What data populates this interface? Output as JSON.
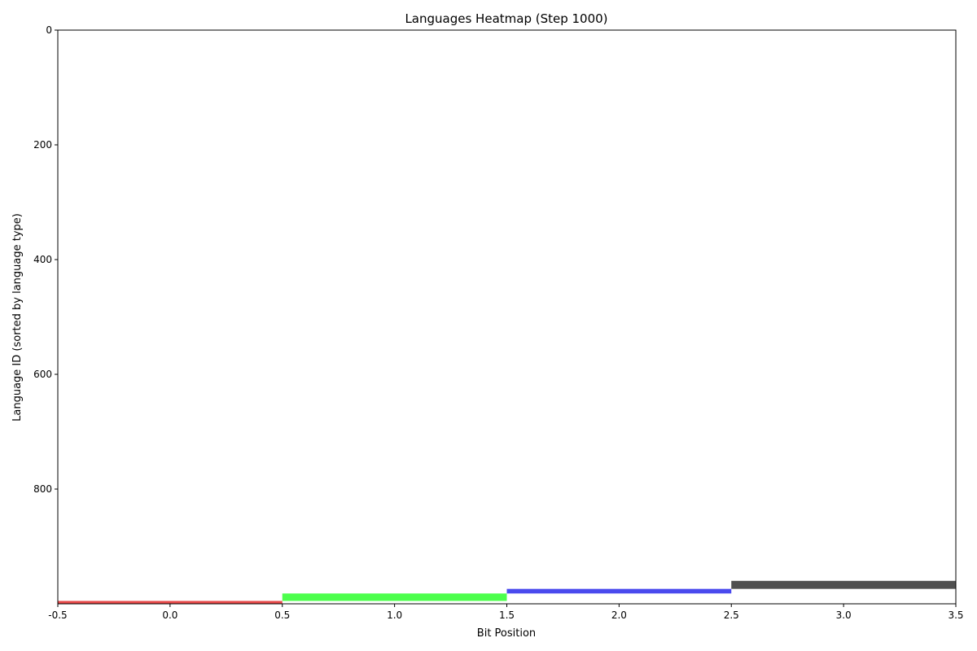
{
  "chart_data": {
    "type": "heatmap",
    "title": "Languages Heatmap (Step 1000)",
    "xlabel": "Bit Position",
    "ylabel": "Language ID (sorted by language type)",
    "xlim": [
      -0.5,
      3.5
    ],
    "ylim": [
      1000,
      0
    ],
    "y_inverted": true,
    "grid": false,
    "x_ticks": [
      {
        "value": -0.5,
        "label": "-0.5"
      },
      {
        "value": 0.0,
        "label": "0.0"
      },
      {
        "value": 0.5,
        "label": "0.5"
      },
      {
        "value": 1.0,
        "label": "1.0"
      },
      {
        "value": 1.5,
        "label": "1.5"
      },
      {
        "value": 2.0,
        "label": "2.0"
      },
      {
        "value": 2.5,
        "label": "2.5"
      },
      {
        "value": 3.0,
        "label": "3.0"
      },
      {
        "value": 3.5,
        "label": "3.5"
      }
    ],
    "y_ticks": [
      {
        "value": 0,
        "label": "0"
      },
      {
        "value": 200,
        "label": "200"
      },
      {
        "value": 400,
        "label": "400"
      },
      {
        "value": 600,
        "label": "600"
      },
      {
        "value": 800,
        "label": "800"
      }
    ],
    "cells": [
      {
        "bit": 0,
        "y_start": 995,
        "y_end": 1000,
        "color": "#e84a4a"
      },
      {
        "bit": 1,
        "y_start": 982,
        "y_end": 995,
        "color": "#4cff4c"
      },
      {
        "bit": 2,
        "y_start": 974,
        "y_end": 982,
        "color": "#4a4aee"
      },
      {
        "bit": 3,
        "y_start": 960,
        "y_end": 974,
        "color": "#4f4f4f"
      }
    ]
  }
}
